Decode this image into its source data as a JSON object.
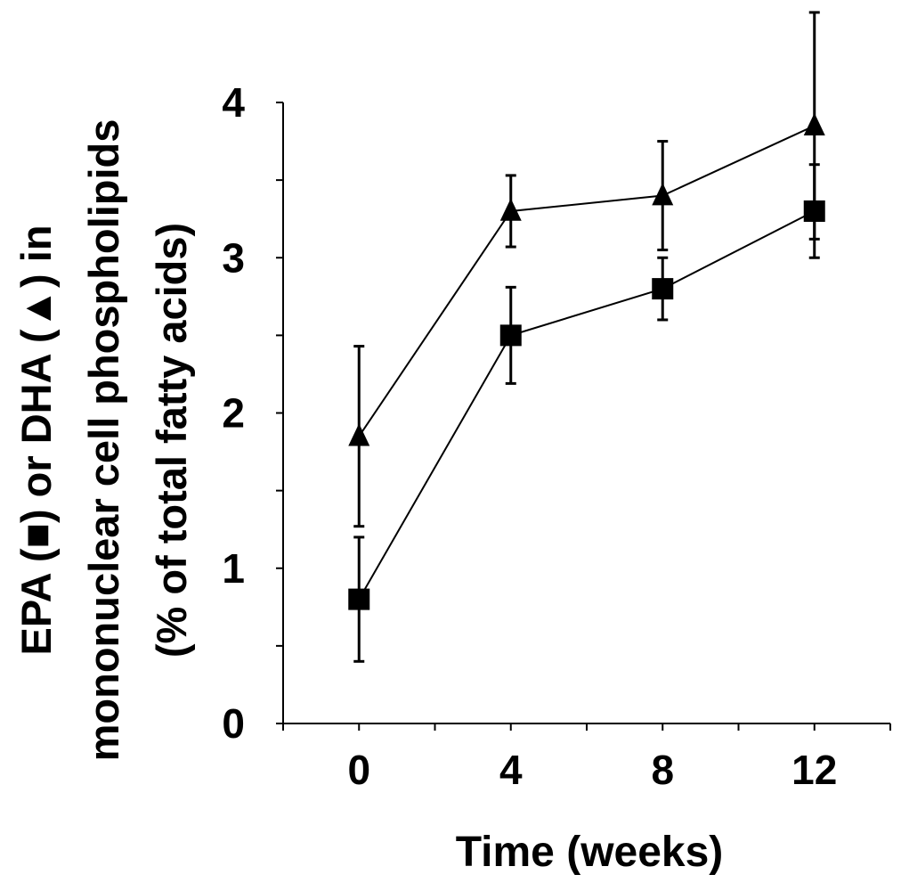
{
  "chart_data": {
    "type": "line",
    "x": [
      0,
      4,
      8,
      12
    ],
    "series": [
      {
        "marker": "triangle",
        "values": [
          1.85,
          3.3,
          3.4,
          3.85
        ],
        "error": [
          0.58,
          0.23,
          0.35,
          0.73
        ]
      },
      {
        "marker": "square",
        "values": [
          0.8,
          2.5,
          2.8,
          3.3
        ],
        "error": [
          0.4,
          0.31,
          0.2,
          0.3
        ]
      }
    ],
    "xlabel": "Time (weeks)",
    "ylabel_lines": [
      "EPA (■) or DHA (▲) in",
      "mononuclear cell phospholipids",
      "(% of total fatty acids)"
    ],
    "xticks": [
      0,
      4,
      8,
      12
    ],
    "xtick_labels": [
      "0",
      "4",
      "8",
      "12"
    ],
    "yticks": [
      0,
      1,
      2,
      3,
      4
    ],
    "ytick_labels": [
      "0",
      "1",
      "2",
      "3",
      "4"
    ],
    "xlim": [
      -2,
      14
    ],
    "ylim": [
      0,
      4
    ],
    "grid": false,
    "colors": {
      "line": "#000000",
      "marker": "#000000",
      "axis": "#000000"
    }
  }
}
